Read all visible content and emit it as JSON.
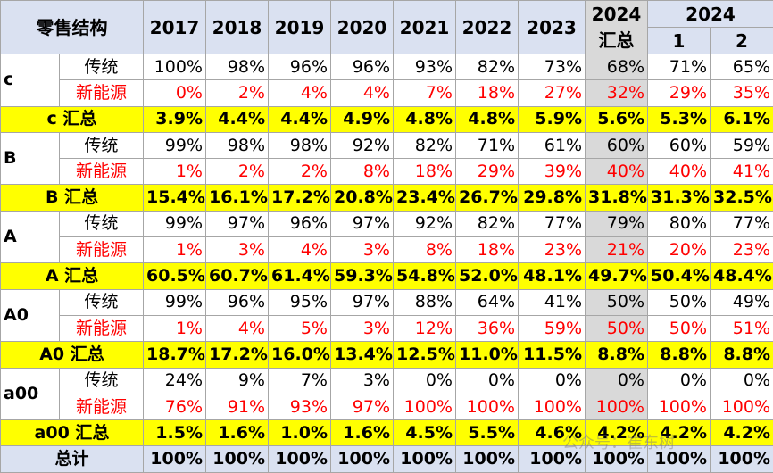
{
  "header": {
    "title": "零售结构",
    "years": [
      "2017",
      "2018",
      "2019",
      "2020",
      "2021",
      "2022",
      "2023"
    ],
    "summary_year": "2024",
    "summary_label": "汇总",
    "month_year": "2024",
    "months": [
      "1",
      "2"
    ]
  },
  "groups": [
    {
      "name": "c",
      "rows": [
        {
          "label": "传统",
          "values": [
            "100%",
            "98%",
            "96%",
            "96%",
            "93%",
            "82%",
            "73%",
            "68%",
            "71%",
            "65%"
          ]
        },
        {
          "label": "新能源",
          "values": [
            "0%",
            "2%",
            "4%",
            "4%",
            "7%",
            "18%",
            "27%",
            "32%",
            "29%",
            "35%"
          ]
        }
      ],
      "summary": {
        "label": "c 汇总",
        "values": [
          "3.9%",
          "4.4%",
          "4.4%",
          "4.9%",
          "4.8%",
          "4.8%",
          "5.9%",
          "5.6%",
          "5.3%",
          "6.1%"
        ]
      }
    },
    {
      "name": "B",
      "rows": [
        {
          "label": "传统",
          "values": [
            "99%",
            "98%",
            "98%",
            "92%",
            "82%",
            "71%",
            "61%",
            "60%",
            "60%",
            "59%"
          ]
        },
        {
          "label": "新能源",
          "values": [
            "1%",
            "2%",
            "2%",
            "8%",
            "18%",
            "29%",
            "39%",
            "40%",
            "40%",
            "41%"
          ]
        }
      ],
      "summary": {
        "label": "B 汇总",
        "values": [
          "15.4%",
          "16.1%",
          "17.2%",
          "20.8%",
          "23.4%",
          "26.7%",
          "29.8%",
          "31.8%",
          "31.3%",
          "32.5%"
        ]
      }
    },
    {
      "name": "A",
      "rows": [
        {
          "label": "传统",
          "values": [
            "99%",
            "97%",
            "96%",
            "97%",
            "92%",
            "82%",
            "77%",
            "79%",
            "80%",
            "77%"
          ]
        },
        {
          "label": "新能源",
          "values": [
            "1%",
            "3%",
            "4%",
            "3%",
            "8%",
            "18%",
            "23%",
            "21%",
            "20%",
            "23%"
          ]
        }
      ],
      "summary": {
        "label": "A 汇总",
        "values": [
          "60.5%",
          "60.7%",
          "61.4%",
          "59.3%",
          "54.8%",
          "52.0%",
          "48.1%",
          "49.7%",
          "50.4%",
          "48.4%"
        ]
      }
    },
    {
      "name": "A0",
      "rows": [
        {
          "label": "传统",
          "values": [
            "99%",
            "96%",
            "95%",
            "97%",
            "88%",
            "64%",
            "41%",
            "50%",
            "50%",
            "49%"
          ]
        },
        {
          "label": "新能源",
          "values": [
            "1%",
            "4%",
            "5%",
            "3%",
            "12%",
            "36%",
            "59%",
            "50%",
            "50%",
            "51%"
          ]
        }
      ],
      "summary": {
        "label": "A0 汇总",
        "values": [
          "18.7%",
          "17.2%",
          "16.0%",
          "13.4%",
          "12.5%",
          "11.0%",
          "11.5%",
          "8.8%",
          "8.8%",
          "8.8%"
        ]
      }
    },
    {
      "name": "a00",
      "rows": [
        {
          "label": "传统",
          "values": [
            "24%",
            "9%",
            "7%",
            "3%",
            "0%",
            "0%",
            "0%",
            "0%",
            "0%",
            "0%"
          ]
        },
        {
          "label": "新能源",
          "values": [
            "76%",
            "91%",
            "93%",
            "97%",
            "100%",
            "100%",
            "100%",
            "100%",
            "100%",
            "100%"
          ]
        }
      ],
      "summary": {
        "label": "a00 汇总",
        "values": [
          "1.5%",
          "1.6%",
          "1.0%",
          "1.6%",
          "4.5%",
          "5.5%",
          "4.6%",
          "4.2%",
          "4.2%",
          "4.2%"
        ]
      }
    }
  ],
  "total": {
    "label": "总计",
    "values": [
      "100%",
      "100%",
      "100%",
      "100%",
      "100%",
      "100%",
      "100%",
      "100%",
      "100%",
      "100%"
    ]
  },
  "watermark": "公众号：崔东树"
}
